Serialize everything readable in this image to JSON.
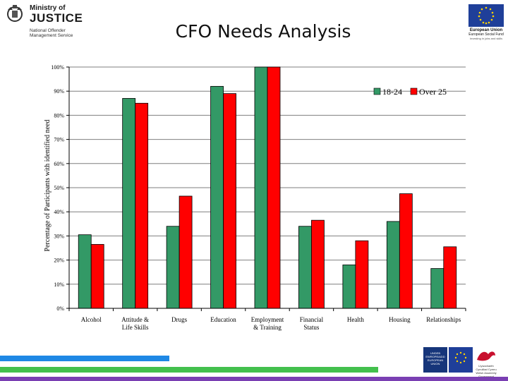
{
  "header": {
    "moj": {
      "line1": "Ministry of",
      "line2": "JUSTICE",
      "line3": "National Offender Management Service"
    },
    "title": "CFO Needs Analysis",
    "eu": {
      "line1": "European Union",
      "line2": "European Social Fund",
      "line3": "Investing in jobs and skills"
    }
  },
  "footer": {
    "logo1_text": "UNDEB EWROPEAIDD EUROPEAN UNION",
    "logo3_text": "Llywodraeth Cynulliad Cymru Welsh Assembly Government"
  },
  "colors": {
    "series_18_24": "#339966",
    "series_over_25": "#ff0000",
    "stripe_blue": "#1e88e5",
    "stripe_green": "#43c04d",
    "stripe_purple": "#7a3fb3"
  },
  "chart_data": {
    "type": "bar",
    "title": "",
    "xlabel": "",
    "ylabel": "Percentage of Participants with identified need",
    "ylim": [
      0,
      100
    ],
    "yticks": [
      "0%",
      "10%",
      "20%",
      "30%",
      "40%",
      "50%",
      "60%",
      "70%",
      "80%",
      "90%",
      "100%"
    ],
    "categories": [
      "Alcohol",
      "Attitude & Life Skills",
      "Drugs",
      "Education",
      "Employment & Training",
      "Financial Status",
      "Health",
      "Housing",
      "Relationships"
    ],
    "category_lines": [
      [
        "Alcohol"
      ],
      [
        "Attitude &",
        "Life Skills"
      ],
      [
        "Drugs"
      ],
      [
        "Education"
      ],
      [
        "Employment",
        "& Training"
      ],
      [
        "Financial",
        "Status"
      ],
      [
        "Health"
      ],
      [
        "Housing"
      ],
      [
        "Relationships"
      ]
    ],
    "series": [
      {
        "name": "18-24",
        "color": "#339966",
        "values": [
          30.5,
          87,
          34,
          92,
          100,
          34,
          18,
          36,
          16.5
        ]
      },
      {
        "name": "Over 25",
        "color": "#ff0000",
        "values": [
          26.5,
          85,
          46.5,
          89,
          100,
          36.5,
          28,
          47.5,
          25.5
        ]
      }
    ],
    "grid": true,
    "legend": "top-right"
  }
}
